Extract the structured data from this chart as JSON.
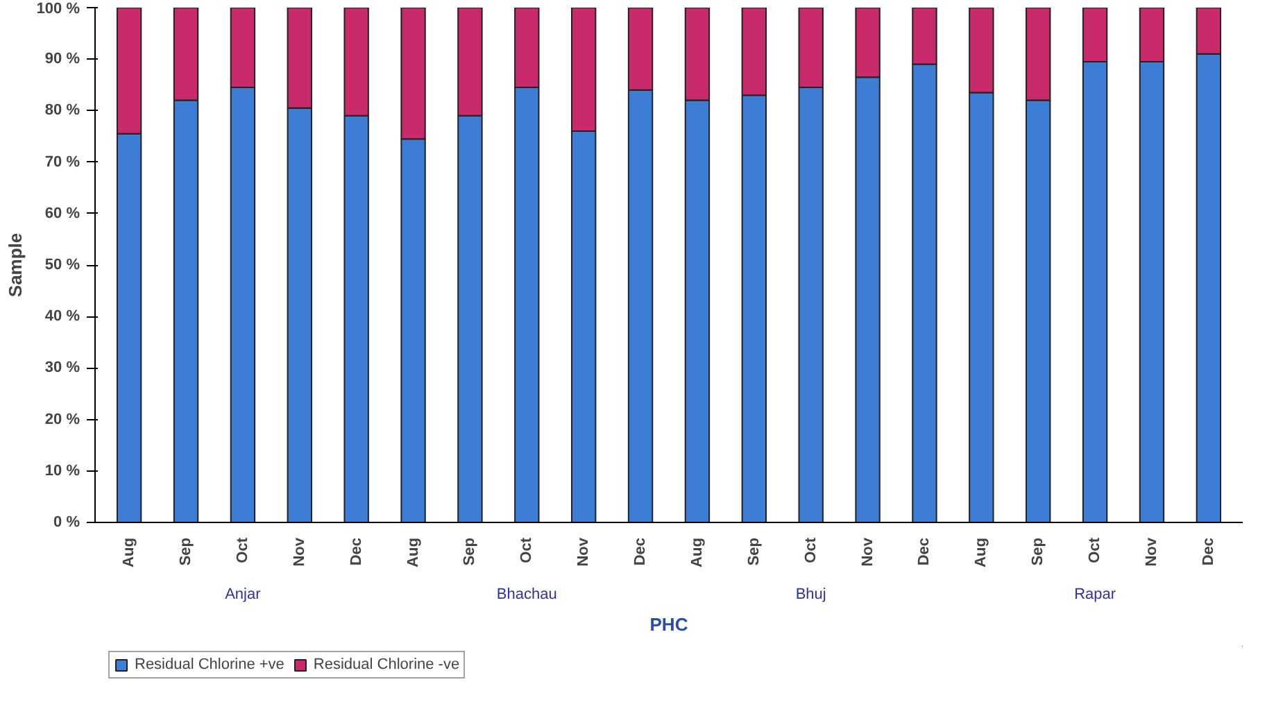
{
  "chart_data": {
    "type": "bar",
    "stacked": true,
    "xlabel": "PHC",
    "ylabel": "Sample",
    "categories": [
      "Aug",
      "Sep",
      "Oct",
      "Nov",
      "Dec",
      "Aug",
      "Sep",
      "Oct",
      "Nov",
      "Dec",
      "Aug",
      "Sep",
      "Oct",
      "Nov",
      "Dec",
      "Aug",
      "Sep",
      "Oct",
      "Nov",
      "Dec"
    ],
    "series": [
      {
        "name": "Residual Chlorine +ve",
        "color": "#3d7dd6",
        "values": [
          75.5,
          82,
          84.5,
          80.5,
          79,
          74.5,
          79,
          84.5,
          76,
          84,
          82,
          83,
          84.5,
          86.5,
          89,
          83.5,
          82,
          89.5,
          89.5,
          91
        ]
      },
      {
        "name": "Residual Chlorine -ve",
        "color": "#c92a6c",
        "values": [
          24.5,
          18,
          15.5,
          19.5,
          21,
          25.5,
          21,
          15.5,
          24,
          16,
          18,
          17,
          15.5,
          13.5,
          11,
          16.5,
          18,
          10.5,
          10.5,
          9
        ]
      }
    ],
    "annotations": [
      "Anjar",
      "Bhachau",
      "Bhuj",
      "Rapar"
    ],
    "ylim": [
      0,
      100
    ],
    "yticks": [
      {
        "value": 0,
        "label": "0 %"
      },
      {
        "value": 10,
        "label": "10 %"
      },
      {
        "value": 20,
        "label": "20 %"
      },
      {
        "value": 30,
        "label": "30 %"
      },
      {
        "value": 40,
        "label": "40 %"
      },
      {
        "value": 50,
        "label": "50 %"
      },
      {
        "value": 60,
        "label": "60 %"
      },
      {
        "value": 70,
        "label": "70 %"
      },
      {
        "value": 80,
        "label": "80 %"
      },
      {
        "value": 90,
        "label": "90 %"
      },
      {
        "value": 100,
        "label": "100 %"
      }
    ],
    "grid": false,
    "legend": "bottom left"
  }
}
